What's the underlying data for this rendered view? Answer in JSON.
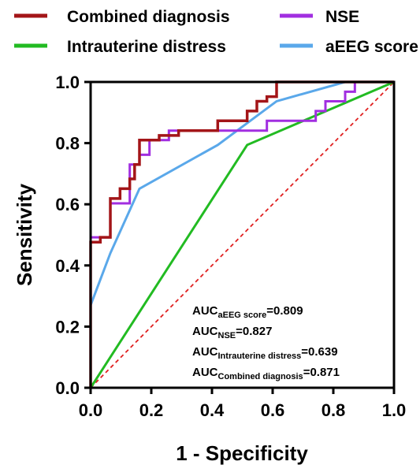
{
  "chart_data": {
    "type": "line",
    "xlabel": "1 - Specificity",
    "ylabel": "Sensitivity",
    "xlim": [
      0,
      1
    ],
    "ylim": [
      0,
      1
    ],
    "xticks": [
      "0.0",
      "0.2",
      "0.4",
      "0.6",
      "0.8",
      "1.0"
    ],
    "yticks": [
      "0.0",
      "0.2",
      "0.4",
      "0.6",
      "0.8",
      "1.0"
    ],
    "grid": false,
    "legend_position": "top",
    "series": [
      {
        "name": "Combined diagnosis",
        "color": "#a31518",
        "step": true,
        "points": [
          [
            0,
            0
          ],
          [
            0,
            0.476
          ],
          [
            0.032,
            0.476
          ],
          [
            0.032,
            0.492
          ],
          [
            0.065,
            0.492
          ],
          [
            0.065,
            0.619
          ],
          [
            0.097,
            0.619
          ],
          [
            0.097,
            0.651
          ],
          [
            0.129,
            0.651
          ],
          [
            0.129,
            0.683
          ],
          [
            0.145,
            0.683
          ],
          [
            0.145,
            0.73
          ],
          [
            0.161,
            0.73
          ],
          [
            0.161,
            0.81
          ],
          [
            0.226,
            0.81
          ],
          [
            0.226,
            0.825
          ],
          [
            0.29,
            0.825
          ],
          [
            0.29,
            0.841
          ],
          [
            0.419,
            0.841
          ],
          [
            0.419,
            0.873
          ],
          [
            0.516,
            0.873
          ],
          [
            0.516,
            0.905
          ],
          [
            0.548,
            0.905
          ],
          [
            0.548,
            0.937
          ],
          [
            0.581,
            0.937
          ],
          [
            0.581,
            0.952
          ],
          [
            0.613,
            0.952
          ],
          [
            0.613,
            1.0
          ],
          [
            1.0,
            1.0
          ]
        ]
      },
      {
        "name": "NSE",
        "color": "#a12ee0",
        "step": true,
        "points": [
          [
            0,
            0
          ],
          [
            0,
            0.492
          ],
          [
            0.065,
            0.492
          ],
          [
            0.065,
            0.603
          ],
          [
            0.129,
            0.603
          ],
          [
            0.129,
            0.73
          ],
          [
            0.161,
            0.73
          ],
          [
            0.161,
            0.762
          ],
          [
            0.194,
            0.762
          ],
          [
            0.194,
            0.81
          ],
          [
            0.258,
            0.81
          ],
          [
            0.258,
            0.841
          ],
          [
            0.581,
            0.841
          ],
          [
            0.581,
            0.873
          ],
          [
            0.742,
            0.873
          ],
          [
            0.742,
            0.905
          ],
          [
            0.774,
            0.905
          ],
          [
            0.774,
            0.937
          ],
          [
            0.839,
            0.937
          ],
          [
            0.839,
            0.968
          ],
          [
            0.871,
            0.968
          ],
          [
            0.871,
            1.0
          ],
          [
            1.0,
            1.0
          ]
        ]
      },
      {
        "name": "Intrauterine distress",
        "color": "#22bb22",
        "step": false,
        "points": [
          [
            0,
            0
          ],
          [
            0.516,
            0.794
          ],
          [
            1.0,
            1.0
          ]
        ]
      },
      {
        "name": "aEEG score",
        "color": "#5aa8ea",
        "step": false,
        "points": [
          [
            0,
            0
          ],
          [
            0,
            0.27
          ],
          [
            0.065,
            0.44
          ],
          [
            0.161,
            0.651
          ],
          [
            0.419,
            0.794
          ],
          [
            0.613,
            0.937
          ],
          [
            0.839,
            1.0
          ],
          [
            1.0,
            1.0
          ]
        ]
      }
    ],
    "reference_line": {
      "color": "#e02020",
      "style": "dashed",
      "points": [
        [
          0,
          0
        ],
        [
          1,
          1
        ]
      ]
    },
    "annotations": [
      {
        "main": "AUC",
        "sub": "aEEG score",
        "value": "=0.809"
      },
      {
        "main": "AUC",
        "sub": "NSE",
        "value": "=0.827"
      },
      {
        "main": "AUC",
        "sub": "Intrauterine distress",
        "value": "=0.639"
      },
      {
        "main": "AUC",
        "sub": "Combined diagnosis",
        "value": "=0.871"
      }
    ],
    "legend": [
      {
        "label": "Combined diagnosis",
        "color": "#a31518"
      },
      {
        "label": "NSE",
        "color": "#a12ee0"
      },
      {
        "label": "Intrauterine distress",
        "color": "#22bb22"
      },
      {
        "label": "aEEG score",
        "color": "#5aa8ea"
      }
    ]
  }
}
